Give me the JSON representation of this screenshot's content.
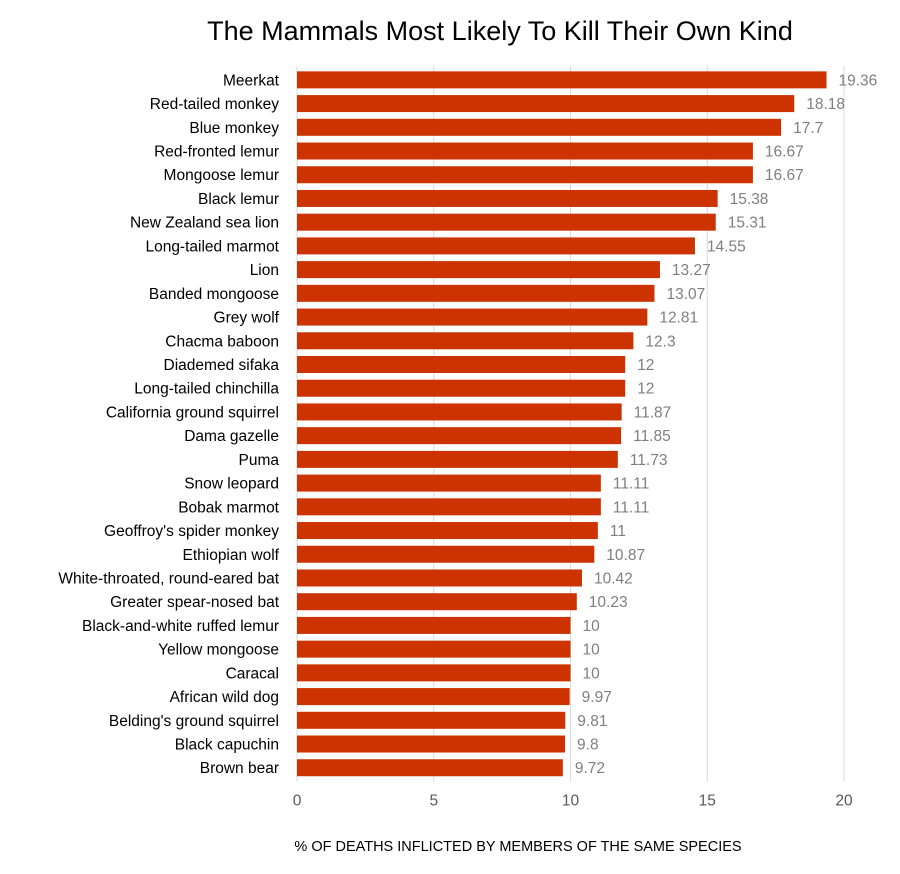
{
  "chart_data": {
    "type": "bar",
    "orientation": "horizontal",
    "title": "The Mammals Most Likely To Kill Their Own Kind",
    "xlabel": "% OF DEATHS INFLICTED BY MEMBERS OF THE SAME SPECIES",
    "ylabel": "",
    "xlim": [
      0,
      20
    ],
    "xticks": [
      "0",
      "5",
      "10",
      "15",
      "20"
    ],
    "grid": "vertical",
    "bar_color": "#cc3300",
    "value_label_color": "#7f7f7f",
    "categories": [
      "Meerkat",
      "Red-tailed monkey",
      "Blue monkey",
      "Red-fronted lemur",
      "Mongoose lemur",
      "Black lemur",
      "New Zealand sea lion",
      "Long-tailed marmot",
      "Lion",
      "Banded mongoose",
      "Grey wolf",
      "Chacma baboon",
      "Diademed sifaka",
      "Long-tailed chinchilla",
      "California ground squirrel",
      "Dama gazelle",
      "Puma",
      "Snow leopard",
      "Bobak marmot",
      "Geoffroy's spider monkey",
      "Ethiopian wolf",
      "White-throated, round-eared bat",
      "Greater spear-nosed bat",
      "Black-and-white ruffed lemur",
      "Yellow mongoose",
      "Caracal",
      "African wild dog",
      "Belding's ground squirrel",
      "Black capuchin",
      "Brown bear"
    ],
    "values": [
      19.36,
      18.18,
      17.7,
      16.67,
      16.67,
      15.38,
      15.31,
      14.55,
      13.27,
      13.07,
      12.81,
      12.3,
      12,
      12,
      11.87,
      11.85,
      11.73,
      11.11,
      11.11,
      11,
      10.87,
      10.42,
      10.23,
      10,
      10,
      10,
      9.97,
      9.81,
      9.8,
      9.72
    ],
    "value_labels": [
      "19.36",
      "18.18",
      "17.7",
      "16.67",
      "16.67",
      "15.38",
      "15.31",
      "14.55",
      "13.27",
      "13.07",
      "12.81",
      "12.3",
      "12",
      "12",
      "11.87",
      "11.85",
      "11.73",
      "11.11",
      "11.11",
      "11",
      "10.87",
      "10.42",
      "10.23",
      "10",
      "10",
      "10",
      "9.97",
      "9.81",
      "9.8",
      "9.72"
    ]
  }
}
